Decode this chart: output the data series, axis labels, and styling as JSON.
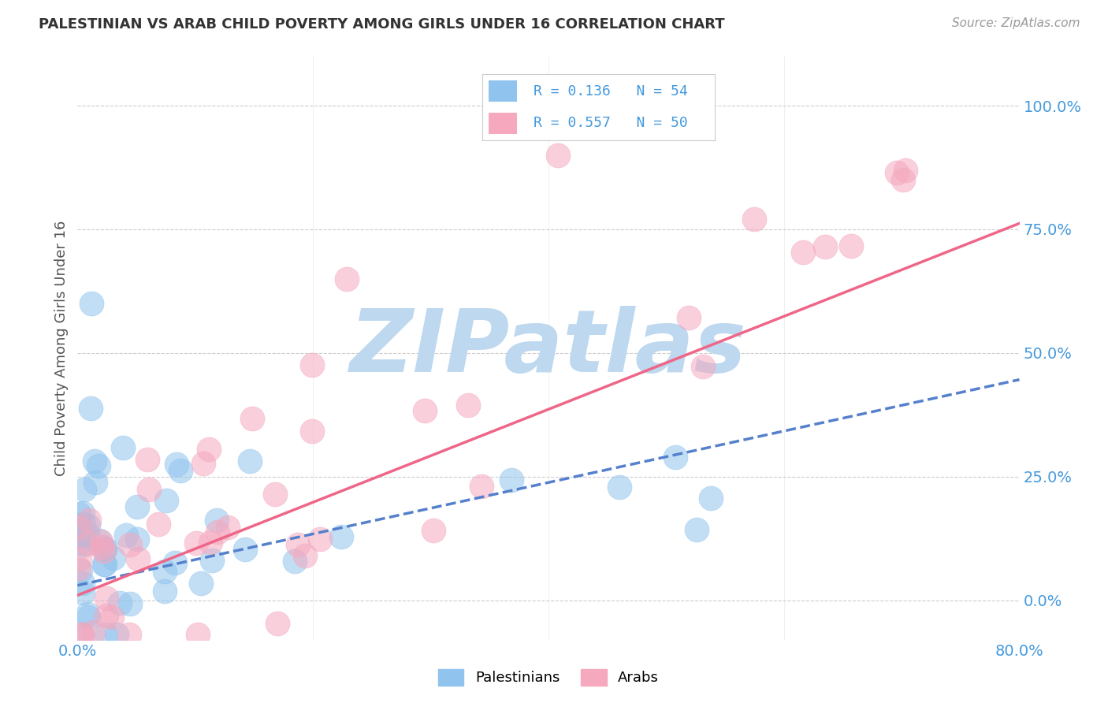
{
  "title": "PALESTINIAN VS ARAB CHILD POVERTY AMONG GIRLS UNDER 16 CORRELATION CHART",
  "source": "Source: ZipAtlas.com",
  "ylabel": "Child Poverty Among Girls Under 16",
  "xlim": [
    0.0,
    0.8
  ],
  "ylim": [
    -0.08,
    1.1
  ],
  "yticks": [
    0.0,
    0.25,
    0.5,
    0.75,
    1.0
  ],
  "ytick_labels": [
    "0.0%",
    "25.0%",
    "50.0%",
    "75.0%",
    "100.0%"
  ],
  "xtick_labels": [
    "0.0%",
    "80.0%"
  ],
  "palestinians_R": 0.136,
  "palestinians_N": 54,
  "arabs_R": 0.557,
  "arabs_N": 50,
  "blue_color": "#90C4EE",
  "pink_color": "#F5A8BE",
  "blue_line_color": "#5580CC",
  "pink_line_color": "#EE6688",
  "tick_color": "#4499DD",
  "title_color": "#333333",
  "source_color": "#999999",
  "ylabel_color": "#555555",
  "background_color": "#FFFFFF",
  "grid_color": "#CCCCCC",
  "watermark_color": "#BDD8EF",
  "legend_border_color": "#CCCCCC"
}
